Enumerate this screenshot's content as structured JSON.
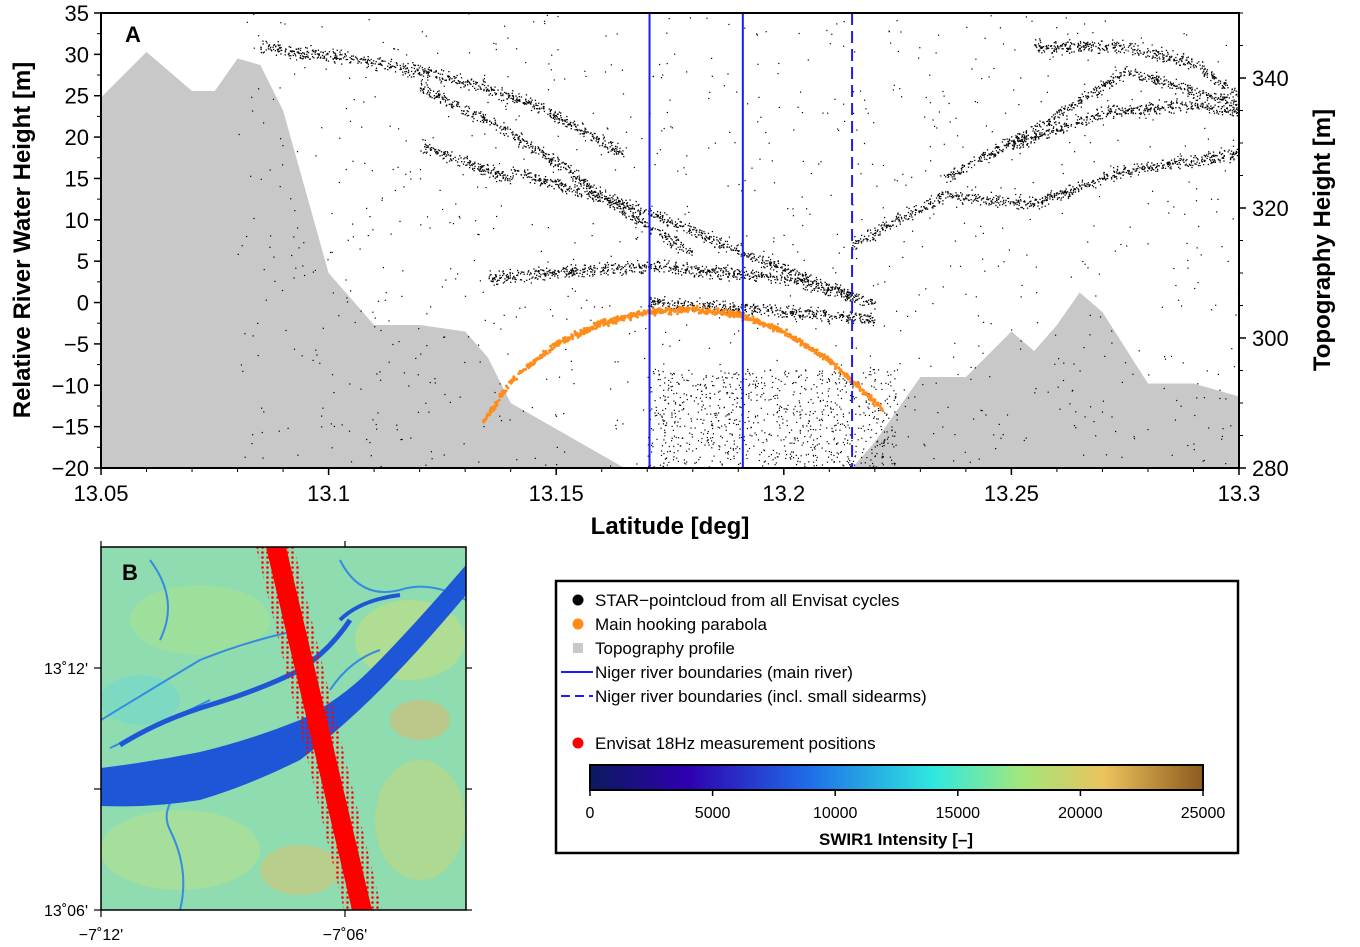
{
  "chart_data": [
    {
      "panel": "A",
      "type": "scatter",
      "xlabel": "Latitude [deg]",
      "ylabel": "Relative River Water Height [m]",
      "ylabel_right": "Topography Height [m]",
      "xlim": [
        13.05,
        13.3
      ],
      "ylim": [
        -20,
        35
      ],
      "ylim_right": [
        280,
        350
      ],
      "x_ticks": [
        "13.05",
        "13.1",
        "13.15",
        "13.2",
        "13.25",
        "13.3"
      ],
      "y_ticks": [
        "35",
        "30",
        "25",
        "20",
        "15",
        "10",
        "5",
        "0",
        "-5",
        "-10",
        "-15",
        "-20"
      ],
      "y_ticks_right": [
        "340",
        "320",
        "300",
        "280"
      ],
      "series": [
        {
          "name": "STAR−pointcloud from all Envisat cycles",
          "color": "#000000",
          "bands": [
            {
              "x": [
                13.085,
                13.105,
                13.125,
                13.145,
                13.165
              ],
              "y": [
                31,
                29.5,
                27.5,
                24,
                18
              ]
            },
            {
              "x": [
                13.12,
                13.135,
                13.15,
                13.165,
                13.18
              ],
              "y": [
                26,
                22,
                17,
                11,
                6
              ]
            },
            {
              "x": [
                13.12,
                13.13,
                13.14
              ],
              "y": [
                19,
                17,
                15
              ]
            },
            {
              "x": [
                13.14,
                13.17,
                13.2,
                13.215
              ],
              "y": [
                16,
                11,
                4,
                1
              ]
            },
            {
              "x": [
                13.135,
                13.17,
                13.2,
                13.22
              ],
              "y": [
                3,
                4.5,
                3,
                0
              ]
            },
            {
              "x": [
                13.17,
                13.2,
                13.22
              ],
              "y": [
                0,
                -1,
                -2
              ]
            },
            {
              "x": [
                13.215,
                13.235,
                13.255,
                13.275,
                13.3
              ],
              "y": [
                7,
                13,
                12,
                16,
                18
              ]
            },
            {
              "x": [
                13.235,
                13.255,
                13.275,
                13.3
              ],
              "y": [
                15,
                21,
                28,
                24
              ]
            },
            {
              "x": [
                13.255,
                13.275,
                13.29,
                13.3
              ],
              "y": [
                31,
                31,
                29,
                25
              ]
            },
            {
              "x": [
                13.25,
                13.27,
                13.29,
                13.3
              ],
              "y": [
                19,
                23,
                24,
                23
              ]
            }
          ]
        },
        {
          "name": "Main hooking parabola",
          "color": "#ff8c1a",
          "x": [
            13.134,
            13.14,
            13.15,
            13.16,
            13.17,
            13.18,
            13.19,
            13.2,
            13.21,
            13.218,
            13.222
          ],
          "y": [
            -14.5,
            -9.5,
            -5,
            -2.5,
            -1.2,
            -0.8,
            -1.5,
            -3.5,
            -7,
            -11,
            -13
          ]
        },
        {
          "name": "Topography profile",
          "color": "#c8c8c8",
          "x": [
            13.05,
            13.06,
            13.065,
            13.07,
            13.075,
            13.08,
            13.085,
            13.09,
            13.1,
            13.11,
            13.12,
            13.13,
            13.135,
            13.14,
            13.15,
            13.165,
            13.175,
            13.19,
            13.2,
            13.21,
            13.22,
            13.23,
            13.24,
            13.25,
            13.255,
            13.26,
            13.265,
            13.27,
            13.28,
            13.29,
            13.3
          ],
          "y": [
            337,
            344,
            341,
            338,
            338,
            343,
            342,
            335,
            310,
            302,
            302,
            301,
            297,
            290,
            286,
            280,
            273,
            276,
            276,
            276,
            284,
            294,
            294,
            301,
            298,
            302,
            307,
            304,
            293,
            293,
            291
          ]
        }
      ],
      "vertical_lines": [
        {
          "name": "Niger river boundaries (main river)",
          "x": 13.1705,
          "style": "solid",
          "color": "#1a1aff"
        },
        {
          "name": "Niger river boundaries (main river)",
          "x": 13.191,
          "style": "solid",
          "color": "#1a1aff"
        },
        {
          "name": "Niger river boundaries (incl. small sidearms)",
          "x": 13.215,
          "style": "dashed",
          "color": "#1a1aff"
        }
      ],
      "title": ""
    },
    {
      "panel": "B",
      "type": "heatmap",
      "x_ticks": [
        "−7˚12'",
        "−7˚06'"
      ],
      "y_ticks": [
        "13˚12'",
        "13˚06'"
      ],
      "series": [
        {
          "name": "Envisat 18Hz measurement positions",
          "color": "#ff0000"
        }
      ],
      "colorbar": {
        "title": "SWIR1 Intensity [–]",
        "range": [
          0,
          25000
        ],
        "ticks": [
          "0",
          "5000",
          "10000",
          "15000",
          "20000",
          "25000"
        ],
        "stops": [
          "#0b1a5e",
          "#2f00b0",
          "#1f6fe8",
          "#2fe8e0",
          "#9ee87e",
          "#ecc25c",
          "#8c5a1e"
        ]
      }
    }
  ],
  "panel_labels": {
    "a": "A",
    "b": "B"
  },
  "legend": {
    "items": [
      {
        "label": "STAR−pointcloud from all Envisat cycles",
        "symbol": "circle",
        "color": "#000000"
      },
      {
        "label": "Main hooking parabola",
        "symbol": "circle",
        "color": "#ff8c1a"
      },
      {
        "label": "Topography profile",
        "symbol": "square",
        "color": "#c8c8c8"
      },
      {
        "label": "Niger river boundaries (main river)",
        "symbol": "line-solid",
        "color": "#1a1aff"
      },
      {
        "label": "Niger river boundaries (incl. small sidearms)",
        "symbol": "line-dashed",
        "color": "#1a1aff"
      },
      {
        "label": "Envisat 18Hz measurement positions",
        "symbol": "circle",
        "color": "#ff0000"
      }
    ]
  }
}
